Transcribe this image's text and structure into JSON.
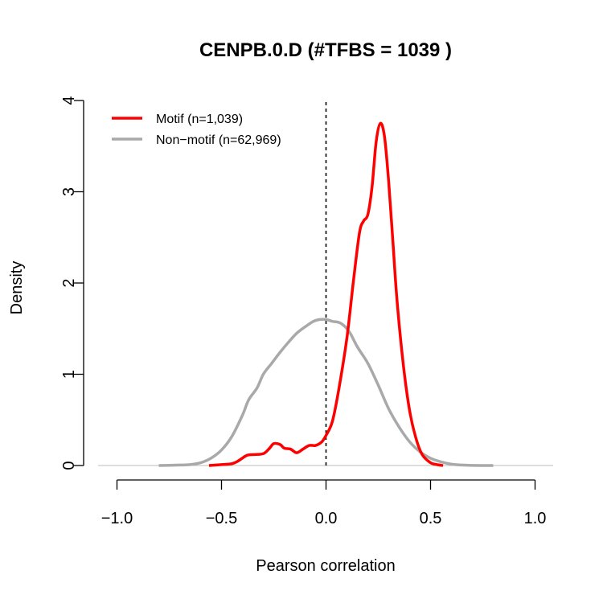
{
  "chart_data": {
    "type": "line",
    "title": "CENPB.0.D (#TFBS = 1039 )",
    "xlabel": "Pearson correlation",
    "ylabel": "Density",
    "xlim": [
      -1.0,
      1.0
    ],
    "ylim": [
      0,
      4
    ],
    "x_ticks": [
      "−1.0",
      "−0.5",
      "0.0",
      "0.5",
      "1.0"
    ],
    "y_ticks": [
      "0",
      "1",
      "2",
      "3",
      "4"
    ],
    "reference_line": {
      "x": 0.0,
      "style": "dashed",
      "color": "#000000"
    },
    "baseline": {
      "y": 0,
      "color": "#bebebe"
    },
    "legend": {
      "placement": "top-left"
    },
    "series": [
      {
        "name": "Motif (n=1,039)",
        "color": "#ff0000",
        "x": [
          -0.56,
          -0.5,
          -0.45,
          -0.42,
          -0.38,
          -0.35,
          -0.3,
          -0.27,
          -0.25,
          -0.22,
          -0.2,
          -0.17,
          -0.14,
          -0.11,
          -0.08,
          -0.05,
          -0.02,
          0.0,
          0.03,
          0.06,
          0.1,
          0.13,
          0.16,
          0.18,
          0.2,
          0.22,
          0.24,
          0.26,
          0.28,
          0.3,
          0.32,
          0.34,
          0.37,
          0.4,
          0.43,
          0.46,
          0.5,
          0.53,
          0.56
        ],
        "y": [
          0.0,
          0.01,
          0.02,
          0.05,
          0.11,
          0.12,
          0.13,
          0.19,
          0.24,
          0.23,
          0.19,
          0.18,
          0.14,
          0.18,
          0.22,
          0.22,
          0.26,
          0.33,
          0.48,
          0.82,
          1.4,
          2.0,
          2.55,
          2.68,
          2.75,
          3.05,
          3.55,
          3.75,
          3.6,
          3.1,
          2.45,
          1.8,
          1.1,
          0.6,
          0.3,
          0.12,
          0.03,
          0.01,
          0.0
        ]
      },
      {
        "name": "Non−motif (n=62,969)",
        "color": "#a9a9a9",
        "x": [
          -0.8,
          -0.7,
          -0.65,
          -0.6,
          -0.55,
          -0.5,
          -0.45,
          -0.4,
          -0.37,
          -0.33,
          -0.3,
          -0.26,
          -0.22,
          -0.18,
          -0.14,
          -0.1,
          -0.06,
          -0.03,
          0.0,
          0.03,
          0.07,
          0.11,
          0.15,
          0.2,
          0.25,
          0.3,
          0.35,
          0.4,
          0.45,
          0.5,
          0.55,
          0.6,
          0.65,
          0.7,
          0.8
        ],
        "y": [
          0.0,
          0.005,
          0.01,
          0.03,
          0.08,
          0.17,
          0.32,
          0.55,
          0.72,
          0.85,
          1.0,
          1.12,
          1.24,
          1.35,
          1.45,
          1.52,
          1.58,
          1.6,
          1.6,
          1.58,
          1.56,
          1.47,
          1.3,
          1.12,
          0.88,
          0.62,
          0.42,
          0.26,
          0.15,
          0.08,
          0.04,
          0.015,
          0.005,
          0.001,
          0.0
        ]
      }
    ]
  }
}
